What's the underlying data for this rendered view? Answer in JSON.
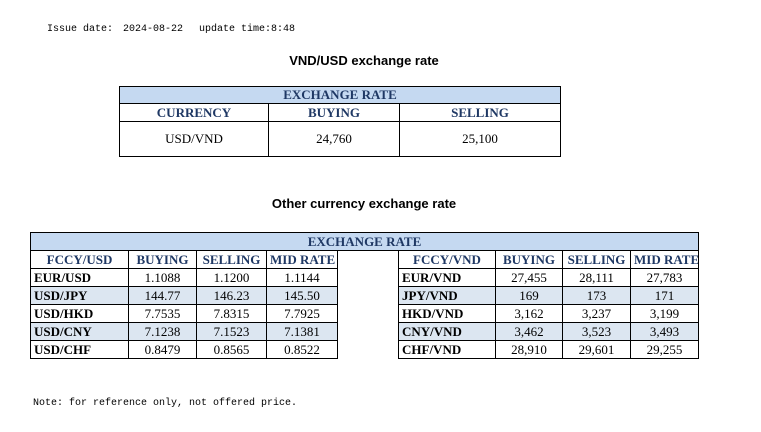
{
  "header": {
    "issue_label": "Issue date:",
    "issue_date": "2024-08-22",
    "update": "update time:8:48"
  },
  "section1": {
    "title": "VND/USD exchange rate",
    "table": {
      "caption": "EXCHANGE RATE",
      "columns": [
        "CURRENCY",
        "BUYING",
        "SELLING"
      ],
      "rows": [
        [
          "USD/VND",
          "24,760",
          "25,100"
        ]
      ]
    }
  },
  "section2": {
    "title": "Other currency exchange rate",
    "table": {
      "caption": "EXCHANGE  RATE",
      "left_columns": [
        "FCCY/USD",
        "BUYING",
        "SELLING",
        "MID RATE"
      ],
      "left_rows": [
        [
          "EUR/USD",
          "1.1088",
          "1.1200",
          "1.1144"
        ],
        [
          "USD/JPY",
          "144.77",
          "146.23",
          "145.50"
        ],
        [
          "USD/HKD",
          "7.7535",
          "7.8315",
          "7.7925"
        ],
        [
          "USD/CNY",
          "7.1238",
          "7.1523",
          "7.1381"
        ],
        [
          "USD/CHF",
          "0.8479",
          "0.8565",
          "0.8522"
        ]
      ],
      "right_columns": [
        "FCCY/VND",
        "BUYING",
        "SELLING",
        "MID RATE"
      ],
      "right_rows": [
        [
          "EUR/VND",
          "27,455",
          "28,111",
          "27,783"
        ],
        [
          "JPY/VND",
          "169",
          "173",
          "171"
        ],
        [
          "HKD/VND",
          "3,162",
          "3,237",
          "3,199"
        ],
        [
          "CNY/VND",
          "3,462",
          "3,523",
          "3,493"
        ],
        [
          "CHF/VND",
          "28,910",
          "29,601",
          "29,255"
        ]
      ]
    }
  },
  "note": "Note: for reference only, not offered price."
}
